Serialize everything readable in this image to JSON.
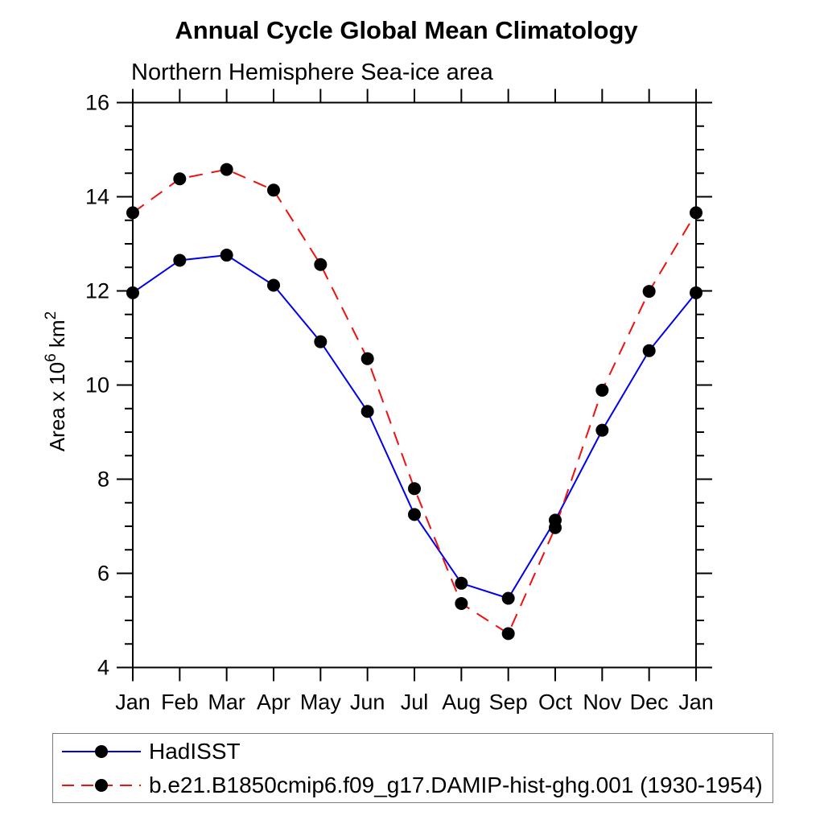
{
  "figure": {
    "title": "Annual Cycle Global Mean Climatology",
    "subtitle": "Northern Hemisphere Sea-ice area"
  },
  "chart_data": {
    "type": "line",
    "title": "Annual Cycle Global Mean Climatology",
    "subtitle": "Northern Hemisphere Sea-ice area",
    "categories": [
      "Jan",
      "Feb",
      "Mar",
      "Apr",
      "May",
      "Jun",
      "Jul",
      "Aug",
      "Sep",
      "Oct",
      "Nov",
      "Dec",
      "Jan"
    ],
    "ylabel": "Area x 10⁶ km²",
    "ylabel_parts": [
      {
        "text": "Area x 10",
        "sup": false
      },
      {
        "text": "6",
        "sup": true
      },
      {
        "text": " km",
        "sup": false
      },
      {
        "text": "2",
        "sup": true
      }
    ],
    "ylim": [
      4,
      16
    ],
    "y_major_step": 2,
    "y_minor_step": 0.5,
    "y_major_ticks": [
      4,
      6,
      8,
      10,
      12,
      14,
      16
    ],
    "grid": false,
    "legend_position": "bottom",
    "axis_color": "#000000",
    "marker_color": "#000000",
    "series": [
      {
        "name": "HadISST",
        "color": "#0000ee",
        "style": "solid",
        "marker": "circle",
        "values": [
          11.96,
          12.65,
          12.76,
          12.12,
          10.92,
          9.44,
          7.25,
          5.79,
          5.47,
          7.13,
          9.04,
          10.73,
          11.96
        ]
      },
      {
        "name": "b.e21.B1850cmip6.f09_g17.DAMIP-hist-ghg.001 (1930-1954)",
        "color": "#f01010",
        "style": "dashed",
        "marker": "circle",
        "values": [
          13.66,
          14.38,
          14.58,
          14.14,
          12.56,
          10.56,
          7.8,
          5.36,
          4.72,
          6.97,
          9.89,
          11.99,
          13.66
        ]
      }
    ]
  }
}
